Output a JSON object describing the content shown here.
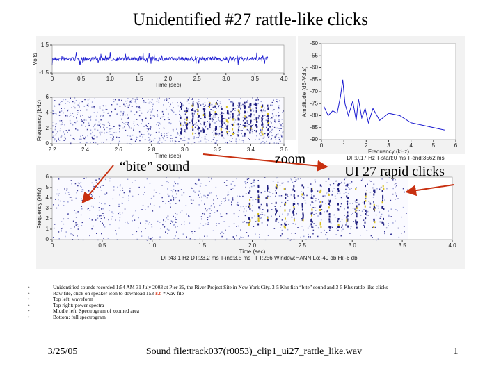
{
  "title": "Unidentified #27 rattle-like clicks",
  "chart_data": [
    {
      "type": "waveform",
      "xlabel": "Time (sec)",
      "ylabel": "Volts",
      "color": "#1a1ad0",
      "xlim": [
        0,
        4
      ],
      "xticks": [
        0,
        0.5,
        {
          "value": 1,
          "label": "1.0"
        },
        1.5,
        {
          "value": 2,
          "label": "2.0"
        },
        2.5,
        {
          "value": 3,
          "label": "3.0"
        },
        3.5,
        {
          "value": 4,
          "label": "4.0"
        }
      ],
      "ylim": [
        -1.5,
        1.5
      ],
      "yticks": [
        -1.5,
        1.5
      ]
    },
    {
      "type": "spectrogram",
      "xlabel": "Time (sec)",
      "ylabel": "Frequency (kHz)",
      "xlim": [
        2.2,
        3.6
      ],
      "xticks": [
        2.2,
        2.4,
        2.6,
        2.8,
        {
          "value": 3,
          "label": "3.0"
        },
        3.2,
        3.4,
        3.6
      ],
      "ylim": [
        0,
        6
      ],
      "yticks": [
        0,
        2,
        4,
        6
      ]
    },
    {
      "type": "line",
      "xlabel": "Frequency (kHz)",
      "ylabel": "Amplitude (dB-Volts)",
      "color": "#1a1ad0",
      "note": "DF:0.17 Hz   T-start:0 ms   T-end:3562 ms",
      "xlim": [
        0,
        6
      ],
      "xticks": [
        0,
        1,
        2,
        3,
        4,
        5,
        6
      ],
      "ylim": [
        -90,
        -50
      ],
      "yticks": [
        -90,
        -85,
        -80,
        -75,
        -70,
        -65,
        -60,
        -55,
        -50
      ],
      "x": [
        0.1,
        0.3,
        0.5,
        0.7,
        0.85,
        0.95,
        1.05,
        1.2,
        1.4,
        1.55,
        1.65,
        1.8,
        1.95,
        2.1,
        2.3,
        2.6,
        3,
        3.5,
        4,
        4.5,
        5,
        5.5
      ],
      "values": [
        -76,
        -80,
        -78,
        -79,
        -72,
        -65,
        -75,
        -80,
        -74,
        -82,
        -73,
        -81,
        -77,
        -83,
        -77,
        -82,
        -79,
        -80,
        -83,
        -84,
        -85,
        -86
      ]
    },
    {
      "type": "spectrogram",
      "xlabel": "Time (sec)",
      "ylabel": "Frequency (kHz)",
      "note": "DF:43.1 Hz   DT:23.2 ms   T-inc:3.5 ms   FFT:256   Window:HANN   Lo:-40 db   Hi:-6 db",
      "xlim": [
        0,
        4
      ],
      "xticks": [
        0,
        0.5,
        {
          "value": 1,
          "label": "1.0"
        },
        1.5,
        {
          "value": 2,
          "label": "2.0"
        },
        2.5,
        {
          "value": 3,
          "label": "3.0"
        },
        3.5,
        {
          "value": 4,
          "label": "4.0"
        }
      ],
      "ylim": [
        0,
        6
      ],
      "yticks": [
        0,
        1,
        2,
        3,
        4,
        5,
        6
      ]
    }
  ],
  "annotations": [
    "“bite” sound",
    "zoom",
    "UI 27 rapid clicks"
  ],
  "bullets": [
    [
      "Unidentified sounds recorded 1:54 AM 31 July 2003 at Pier 26, the River Project Site in New York City. 3-5 Khz fish “bite” sound and 3-5 Khz rattle-like clicks"
    ],
    [
      "Raw file, click on speaker icon to download 153 ",
      "Kb",
      " *.wav file"
    ],
    [
      "Top left: waveform"
    ],
    [
      "Top right: power spectra"
    ],
    [
      "Middle left: Spectrogram of zoomed area"
    ],
    [
      "Bottom: full spectrogram"
    ]
  ],
  "footer": {
    "date": "3/25/05",
    "file": "Sound file:track037(r0053)_clip1_ui27_rattle_like.wav",
    "page": "1"
  }
}
